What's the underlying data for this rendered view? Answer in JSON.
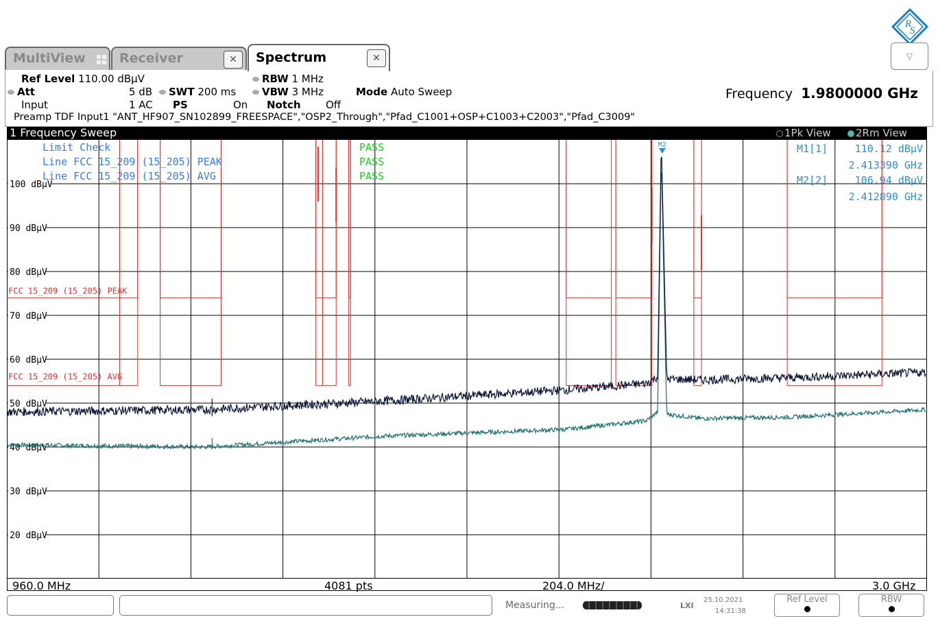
{
  "tabs": [
    {
      "label": "MultiView"
    },
    {
      "label": "Receiver"
    },
    {
      "label": "Spectrum"
    }
  ],
  "settings": {
    "ref_level_label": "Ref Level",
    "ref_level_value": "110.00 dBµV",
    "att_label": "Att",
    "att_value": "5 dB",
    "input_label": "Input",
    "input_value": "1 AC",
    "swt_label": "SWT",
    "swt_value": "200 ms",
    "ps_label": "PS",
    "ps_value": "On",
    "rbw_label": "RBW",
    "rbw_value": "1 MHz",
    "vbw_label": "VBW",
    "vbw_value": "3 MHz",
    "notch_label": "Notch",
    "notch_value": "Off",
    "mode_label": "Mode",
    "mode_value": "Auto Sweep",
    "frequency_label": "Frequency",
    "frequency_value": "1.9800000 GHz",
    "transducer_line": "Preamp TDF Input1 \"ANT_HF907_SN102899_FREESPACE\",\"OSP2_Through\",\"Pfad_C1001+OSP+C1003+C2003\",\"Pfad_C3009\""
  },
  "window": {
    "title": "1 Frequency Sweep",
    "trace1": "1Pk View",
    "trace2": "2Rm View"
  },
  "limit_check": {
    "title": "Limit Check",
    "title_result": "PASS",
    "lines": [
      {
        "name": "Line FCC 15_209 (15_205) PEAK",
        "result": "PASS"
      },
      {
        "name": "Line FCC 15_209 (15_205) AVG",
        "result": "PASS"
      }
    ]
  },
  "markers": [
    {
      "label": "M1[1]",
      "level": "110.12 dBµV",
      "freq": "2.413390 GHz"
    },
    {
      "label": "M2[2]",
      "level": "106.94 dBµV",
      "freq": "2.412890 GHz"
    }
  ],
  "marker_flag": "M2",
  "y_axis_labels": [
    "100 dBµV",
    "90 dBµV",
    "80 dBµV",
    "70 dBµV",
    "60 dBµV",
    "50 dBµV",
    "40 dBµV",
    "30 dBµV",
    "20 dBµV"
  ],
  "limit_line_labels": {
    "peak": "FCC 15_209 (15_205) PEAK",
    "avg": "FCC 15_209 (15_205) AVG"
  },
  "footer": {
    "start": "960.0 MHz",
    "points": "4081 pts",
    "span_per_div": "204.0 MHz/",
    "stop": "3.0 GHz"
  },
  "status": {
    "measuring": "Measuring...",
    "date": "25.10.2021",
    "time": "14:31:38",
    "softkey1": "Ref Level",
    "softkey2": "RBW"
  },
  "colors": {
    "peak_trace": "#0b1638",
    "avg_trace": "#1f6f6f",
    "limit": "#e03030",
    "marker_text": "#2a8fd0",
    "limit_check_text": "#3a7be0",
    "pass": "#22cc22"
  },
  "chart_data": {
    "type": "line",
    "xlim_mhz": [
      960,
      3000
    ],
    "ylim_dbuv": [
      10,
      110
    ],
    "series": [
      {
        "x_mhz": [
          960,
          1400,
          1800,
          2200,
          2380,
          2405,
          2413,
          2425,
          2500,
          2700,
          3000
        ],
        "y_dbuv": [
          48.0,
          48.5,
          50.5,
          53.0,
          54.5,
          56.0,
          110.12,
          55.5,
          55.3,
          55.8,
          57.0
        ]
      },
      {
        "x_mhz": [
          960,
          1400,
          1800,
          2200,
          2380,
          2405,
          2413,
          2425,
          2500,
          2700,
          3000
        ],
        "y_dbuv": [
          40.5,
          40.0,
          42.5,
          44.0,
          46.0,
          48.0,
          106.94,
          47.5,
          46.5,
          46.8,
          48.5
        ]
      }
    ],
    "limit_peak": {
      "y_dbuv": 74
    },
    "limit_avg": {
      "y_dbuv": 54
    }
  }
}
